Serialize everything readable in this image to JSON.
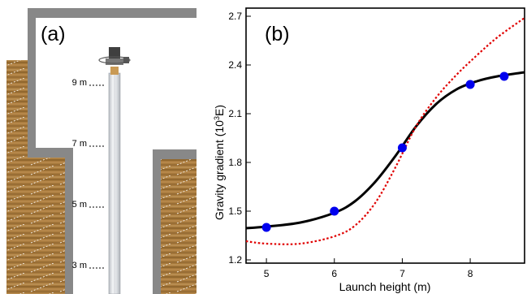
{
  "panel_a": {
    "label": "(a)",
    "height_marks": [
      {
        "text": "9 m",
        "value": 9
      },
      {
        "text": "7 m",
        "value": 7
      },
      {
        "text": "5 m",
        "value": 5
      },
      {
        "text": "3 m",
        "value": 3
      }
    ],
    "colors": {
      "wall": "#808080",
      "soil": "#a87a3c",
      "tube": "#dfe2e6",
      "device": "#404040"
    }
  },
  "panel_b": {
    "label": "(b)",
    "xlabel": "Launch height (m)",
    "ylabel": "Gravity gradient  (10",
    "ylabel_sup": "3",
    "ylabel_unit": "E)"
  },
  "chart_data": {
    "type": "line",
    "xlabel": "Launch height (m)",
    "ylabel": "Gravity gradient (10^3 E)",
    "xlim": [
      4.7,
      8.8
    ],
    "ylim": [
      1.18,
      2.75
    ],
    "x_ticks": [
      5,
      6,
      7,
      8
    ],
    "y_ticks": [
      1.2,
      1.5,
      1.8,
      2.1,
      2.4,
      2.7
    ],
    "x_tick_labels": [
      "5",
      "6",
      "7",
      "8"
    ],
    "y_tick_labels": [
      "1.2",
      "1.5",
      "1.8",
      "2.1",
      "2.4",
      "2.7"
    ],
    "grid": false,
    "series": [
      {
        "style": "solid",
        "color": "#000000",
        "x": [
          4.7,
          5.0,
          5.5,
          6.0,
          6.3,
          6.6,
          6.9,
          7.2,
          7.5,
          7.8,
          8.1,
          8.4,
          8.8
        ],
        "y": [
          1.395,
          1.405,
          1.43,
          1.49,
          1.56,
          1.68,
          1.84,
          2.02,
          2.16,
          2.25,
          2.3,
          2.33,
          2.355
        ]
      },
      {
        "style": "dotted",
        "color": "#e00000",
        "x": [
          4.7,
          5.0,
          5.5,
          6.0,
          6.3,
          6.6,
          6.9,
          7.2,
          7.5,
          7.8,
          8.1,
          8.4,
          8.8
        ],
        "y": [
          1.315,
          1.3,
          1.3,
          1.345,
          1.41,
          1.55,
          1.77,
          2.02,
          2.2,
          2.34,
          2.46,
          2.57,
          2.69
        ]
      },
      {
        "style": "markers",
        "color": "#0000ee",
        "x": [
          5.0,
          6.0,
          7.0,
          8.0,
          8.5
        ],
        "y": [
          1.4,
          1.5,
          1.89,
          2.28,
          2.33
        ]
      }
    ]
  }
}
